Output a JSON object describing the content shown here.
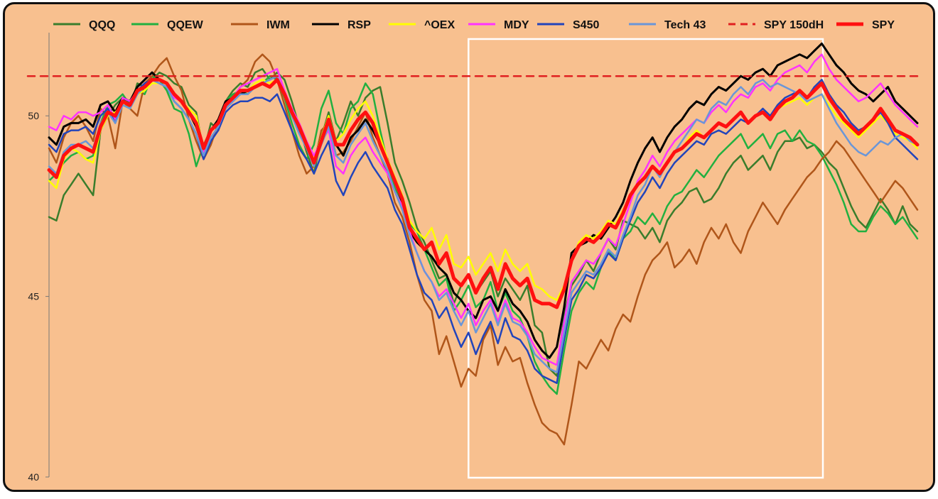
{
  "chart_data": {
    "type": "line",
    "title": "",
    "xlabel": "",
    "ylabel": "",
    "ylim": [
      40,
      52.5
    ],
    "yticks": [
      40,
      45,
      50
    ],
    "grid": false,
    "legend_position": "top",
    "highlight_box": {
      "x_start_index": 57,
      "x_end_index": 104
    },
    "series": [
      {
        "name": "QQQ",
        "color": "#3a7d2c",
        "width": 2.5,
        "values": [
          47.2,
          47.1,
          47.8,
          48.1,
          48.4,
          48.1,
          47.8,
          49.6,
          50.0,
          50.3,
          50.5,
          50.2,
          50.9,
          50.8,
          51.0,
          51.2,
          51.1,
          50.9,
          50.8,
          50.3,
          50.1,
          49.0,
          49.8,
          49.6,
          50.4,
          50.7,
          50.9,
          50.8,
          51.2,
          51.3,
          51.0,
          51.2,
          51.0,
          50.4,
          49.7,
          49.0,
          48.4,
          49.4,
          50.1,
          49.3,
          49.8,
          50.4,
          50.0,
          50.5,
          50.7,
          50.8,
          49.8,
          48.7,
          48.2,
          47.6,
          46.9,
          46.5,
          46.0,
          45.5,
          45.6,
          44.8,
          45.3,
          45.6,
          45.1,
          45.4,
          45.7,
          45.0,
          45.5,
          45.2,
          44.9,
          45.3,
          44.2,
          44.0,
          43.0,
          42.8,
          44.5,
          45.3,
          45.6,
          46.0,
          45.7,
          46.2,
          46.6,
          46.3,
          47.1,
          47.0,
          46.9,
          46.6,
          46.9,
          46.5,
          47.1,
          47.4,
          47.6,
          47.9,
          48.0,
          47.6,
          47.7,
          48.0,
          48.4,
          48.7,
          48.9,
          48.5,
          48.7,
          48.9,
          48.5,
          49.0,
          49.3,
          49.3,
          49.4,
          49.1,
          49.2,
          49.0,
          48.7,
          48.5,
          48.0,
          47.5,
          47.1,
          46.9,
          47.3,
          47.7,
          47.4,
          47.0,
          47.5,
          47.0,
          46.8
        ]
      },
      {
        "name": "QQEW",
        "color": "#22b040",
        "width": 2.5,
        "values": [
          48.2,
          48.4,
          48.7,
          48.9,
          49.0,
          48.8,
          48.9,
          49.8,
          50.3,
          50.4,
          50.6,
          50.3,
          50.7,
          50.6,
          51.1,
          51.0,
          50.7,
          50.2,
          50.1,
          49.5,
          48.6,
          49.2,
          49.6,
          49.9,
          50.4,
          50.6,
          50.7,
          50.6,
          50.8,
          50.9,
          51.1,
          51.0,
          50.5,
          49.8,
          49.2,
          48.8,
          49.2,
          50.2,
          50.7,
          49.8,
          49.5,
          50.2,
          50.4,
          50.9,
          50.6,
          49.6,
          48.7,
          48.0,
          47.6,
          47.0,
          46.8,
          46.3,
          45.8,
          45.3,
          45.5,
          44.6,
          44.9,
          45.3,
          44.7,
          44.9,
          45.4,
          44.6,
          45.1,
          44.6,
          44.4,
          43.9,
          43.2,
          42.8,
          42.5,
          42.3,
          43.5,
          44.6,
          45.1,
          45.4,
          45.2,
          45.8,
          46.3,
          46.0,
          46.6,
          46.8,
          47.2,
          47.0,
          47.3,
          47.0,
          47.5,
          47.8,
          47.9,
          48.2,
          48.5,
          48.3,
          48.6,
          48.9,
          49.1,
          49.3,
          49.5,
          49.1,
          49.3,
          49.5,
          49.1,
          49.5,
          49.6,
          49.3,
          49.6,
          49.3,
          49.2,
          48.9,
          48.5,
          48.1,
          47.6,
          47.0,
          46.8,
          46.8,
          47.2,
          47.5,
          47.3,
          47.0,
          47.2,
          46.9,
          46.6
        ]
      },
      {
        "name": "IWM",
        "color": "#b0561a",
        "width": 2.5,
        "values": [
          49.1,
          48.7,
          49.4,
          49.8,
          50.0,
          49.7,
          49.3,
          50.2,
          50.0,
          49.1,
          50.4,
          50.2,
          50.0,
          50.9,
          51.1,
          51.4,
          51.6,
          51.1,
          50.7,
          49.9,
          49.3,
          48.8,
          49.2,
          49.8,
          50.2,
          50.5,
          50.8,
          51.0,
          51.5,
          51.7,
          51.5,
          51.0,
          50.3,
          49.6,
          48.9,
          48.4,
          48.6,
          49.6,
          49.8,
          48.9,
          49.0,
          49.3,
          49.7,
          50.1,
          49.4,
          48.9,
          48.4,
          47.6,
          47.2,
          46.5,
          45.6,
          44.9,
          44.6,
          43.4,
          43.9,
          43.2,
          42.5,
          43.0,
          42.8,
          43.8,
          44.2,
          43.1,
          43.6,
          43.2,
          43.3,
          42.6,
          42.0,
          41.5,
          41.3,
          41.2,
          40.9,
          42.0,
          43.2,
          43.0,
          43.4,
          43.8,
          43.5,
          44.1,
          44.5,
          44.3,
          45.0,
          45.6,
          46.0,
          46.2,
          46.5,
          45.8,
          46.0,
          46.3,
          45.9,
          46.5,
          46.9,
          46.6,
          47.0,
          46.5,
          46.2,
          46.8,
          47.2,
          47.6,
          47.3,
          47.0,
          47.4,
          47.7,
          48.0,
          48.3,
          48.5,
          48.8,
          49.0,
          49.3,
          49.1,
          48.8,
          48.5,
          48.2,
          47.9,
          47.6,
          47.9,
          48.2,
          48.0,
          47.7,
          47.4
        ]
      },
      {
        "name": "RSP",
        "color": "#000000",
        "width": 3,
        "values": [
          49.4,
          49.2,
          49.7,
          49.8,
          49.8,
          49.9,
          49.7,
          50.3,
          50.4,
          50.1,
          50.5,
          50.4,
          50.8,
          51.0,
          51.2,
          51.0,
          50.9,
          50.6,
          50.4,
          50.1,
          49.7,
          49.1,
          49.6,
          49.9,
          50.4,
          50.5,
          50.6,
          50.7,
          50.8,
          50.9,
          50.8,
          51.0,
          50.6,
          50.1,
          49.6,
          49.2,
          48.8,
          49.4,
          49.9,
          49.2,
          48.9,
          49.4,
          49.6,
          49.9,
          49.6,
          49.2,
          48.8,
          48.2,
          47.6,
          46.8,
          46.5,
          46.3,
          46.1,
          45.8,
          45.6,
          45.1,
          44.9,
          44.6,
          44.4,
          44.9,
          45.0,
          44.6,
          45.2,
          44.8,
          44.6,
          44.3,
          43.8,
          43.5,
          43.3,
          43.6,
          44.7,
          46.2,
          46.4,
          46.5,
          46.7,
          46.6,
          46.9,
          47.2,
          47.6,
          48.2,
          48.7,
          49.1,
          49.4,
          49.0,
          49.4,
          49.7,
          49.9,
          50.2,
          50.4,
          50.3,
          50.6,
          50.8,
          50.7,
          50.9,
          51.1,
          51.0,
          51.2,
          51.3,
          51.1,
          51.4,
          51.5,
          51.6,
          51.7,
          51.6,
          51.8,
          52.0,
          51.7,
          51.4,
          51.2,
          50.9,
          50.7,
          50.6,
          50.4,
          50.6,
          50.8,
          50.4,
          50.2,
          50.0,
          49.8
        ]
      },
      {
        "name": "^OEX",
        "color": "#ffff00",
        "width": 2.5,
        "values": [
          48.2,
          48.0,
          48.8,
          49.1,
          49.0,
          48.8,
          48.7,
          49.6,
          50.0,
          50.1,
          50.3,
          50.2,
          50.6,
          50.7,
          50.9,
          50.9,
          50.8,
          50.6,
          50.4,
          50.2,
          50.0,
          49.1,
          49.6,
          49.8,
          50.3,
          50.5,
          50.7,
          50.7,
          50.9,
          51.0,
          50.9,
          51.0,
          50.7,
          50.2,
          49.8,
          49.3,
          48.8,
          49.4,
          50.0,
          49.3,
          49.5,
          49.9,
          50.2,
          50.4,
          50.0,
          49.4,
          48.8,
          48.3,
          47.8,
          47.1,
          46.8,
          46.6,
          46.9,
          46.3,
          46.7,
          45.9,
          45.8,
          46.1,
          45.6,
          45.9,
          46.2,
          45.7,
          46.3,
          45.9,
          45.7,
          45.9,
          45.3,
          45.2,
          45.0,
          44.9,
          45.3,
          46.0,
          46.5,
          46.7,
          46.6,
          46.8,
          47.1,
          47.0,
          47.4,
          47.8,
          48.1,
          48.3,
          48.6,
          48.4,
          48.7,
          49.0,
          49.1,
          49.4,
          49.6,
          49.4,
          49.6,
          49.8,
          49.7,
          49.9,
          50.1,
          49.8,
          50.0,
          50.1,
          49.9,
          50.2,
          50.3,
          50.4,
          50.5,
          50.3,
          50.5,
          50.6,
          50.3,
          50.0,
          49.8,
          49.6,
          49.4,
          49.6,
          49.8,
          50.0,
          49.8,
          49.5,
          49.4,
          49.3,
          49.1
        ]
      },
      {
        "name": "MDY",
        "color": "#ff33ff",
        "width": 2.5,
        "values": [
          49.7,
          49.6,
          50.0,
          49.9,
          50.1,
          50.1,
          50.0,
          50.1,
          50.3,
          49.9,
          50.5,
          50.4,
          50.7,
          50.8,
          51.0,
          50.9,
          50.8,
          50.5,
          50.4,
          50.1,
          49.8,
          49.0,
          49.6,
          49.8,
          50.3,
          50.5,
          50.8,
          50.9,
          51.0,
          51.1,
          51.2,
          51.3,
          50.7,
          50.2,
          49.8,
          49.3,
          48.9,
          49.3,
          49.6,
          48.6,
          48.4,
          48.9,
          49.2,
          49.4,
          49.0,
          48.7,
          48.4,
          47.9,
          47.5,
          46.8,
          46.2,
          45.7,
          45.4,
          45.0,
          45.2,
          44.8,
          44.4,
          44.8,
          44.2,
          44.6,
          44.9,
          44.3,
          44.9,
          44.4,
          44.3,
          44.0,
          43.6,
          43.3,
          43.2,
          43.1,
          44.3,
          45.4,
          45.7,
          46.0,
          45.9,
          46.2,
          46.6,
          46.4,
          47.0,
          47.6,
          48.2,
          48.5,
          48.9,
          48.6,
          49.0,
          49.3,
          49.5,
          49.7,
          49.9,
          49.8,
          50.1,
          50.3,
          50.1,
          50.4,
          50.6,
          50.5,
          50.8,
          50.9,
          50.7,
          51.0,
          51.2,
          51.3,
          51.4,
          51.2,
          51.5,
          51.7,
          51.3,
          51.0,
          50.8,
          50.6,
          50.4,
          50.5,
          50.7,
          50.9,
          50.6,
          50.3,
          50.1,
          49.9,
          49.7
        ]
      },
      {
        "name": "S450",
        "color": "#2244bb",
        "width": 2.5,
        "values": [
          49.2,
          49.0,
          49.5,
          49.6,
          49.6,
          49.7,
          49.5,
          50.0,
          50.2,
          49.8,
          50.4,
          50.3,
          50.7,
          50.9,
          51.0,
          50.9,
          50.8,
          50.4,
          50.2,
          49.9,
          49.5,
          48.8,
          49.3,
          49.6,
          50.1,
          50.3,
          50.4,
          50.4,
          50.5,
          50.5,
          50.4,
          50.6,
          50.1,
          49.6,
          49.1,
          48.8,
          48.4,
          48.9,
          49.3,
          48.2,
          47.8,
          48.3,
          48.7,
          49.0,
          48.6,
          48.3,
          48.0,
          47.4,
          47.0,
          46.3,
          45.6,
          45.1,
          44.9,
          44.4,
          44.7,
          44.1,
          43.6,
          44.0,
          43.4,
          43.9,
          44.3,
          43.7,
          44.4,
          43.9,
          43.8,
          43.5,
          43.0,
          42.8,
          42.7,
          42.6,
          43.8,
          44.9,
          45.2,
          45.6,
          45.5,
          45.8,
          46.2,
          46.0,
          46.6,
          47.1,
          47.6,
          47.9,
          48.3,
          48.0,
          48.4,
          48.7,
          48.9,
          49.1,
          49.3,
          49.2,
          49.5,
          49.6,
          49.5,
          49.7,
          49.9,
          49.8,
          50.0,
          50.2,
          50.0,
          50.3,
          50.5,
          50.6,
          50.7,
          50.5,
          50.8,
          51.0,
          50.6,
          50.3,
          50.1,
          49.8,
          49.6,
          49.7,
          49.9,
          50.1,
          49.8,
          49.4,
          49.2,
          49.0,
          48.8
        ]
      },
      {
        "name": "Tech 43",
        "color": "#6a96d8",
        "width": 2.5,
        "values": [
          48.6,
          48.4,
          49.0,
          49.2,
          49.2,
          49.3,
          49.1,
          49.8,
          50.1,
          49.8,
          50.3,
          50.2,
          50.6,
          50.8,
          51.0,
          50.9,
          50.8,
          50.4,
          50.2,
          49.9,
          49.5,
          48.9,
          49.4,
          49.7,
          50.2,
          50.4,
          50.6,
          50.6,
          50.8,
          50.9,
          51.0,
          51.1,
          50.6,
          50.0,
          49.5,
          49.1,
          48.6,
          49.2,
          49.7,
          48.9,
          48.7,
          49.2,
          49.5,
          49.8,
          49.3,
          48.9,
          48.5,
          47.9,
          47.4,
          46.7,
          46.2,
          45.7,
          45.4,
          44.9,
          45.1,
          44.6,
          44.2,
          44.6,
          44.0,
          44.4,
          44.8,
          44.2,
          44.8,
          44.3,
          44.2,
          43.9,
          43.4,
          43.2,
          43.0,
          42.9,
          44.0,
          45.1,
          45.4,
          45.7,
          45.6,
          45.9,
          46.3,
          46.1,
          46.7,
          47.2,
          47.8,
          48.1,
          48.6,
          48.3,
          48.7,
          49.0,
          49.3,
          49.6,
          49.9,
          49.8,
          50.2,
          50.4,
          50.3,
          50.6,
          50.8,
          50.6,
          50.9,
          51.0,
          50.8,
          50.9,
          50.8,
          50.7,
          50.6,
          50.4,
          50.5,
          50.6,
          50.2,
          49.8,
          49.5,
          49.2,
          49.0,
          48.9,
          49.1,
          49.3,
          49.2,
          49.4,
          49.5,
          49.3,
          49.2
        ]
      },
      {
        "name": "SPY 150dH",
        "color": "#e02020",
        "width": 2.5,
        "dashed": true,
        "values": [
          51.1,
          51.1
        ]
      },
      {
        "name": "SPY",
        "color": "#ff1010",
        "width": 5,
        "values": [
          48.5,
          48.3,
          48.9,
          49.1,
          49.2,
          49.1,
          49.0,
          49.7,
          50.1,
          50.0,
          50.4,
          50.3,
          50.7,
          50.8,
          51.0,
          51.0,
          50.9,
          50.6,
          50.4,
          50.1,
          49.8,
          49.1,
          49.6,
          49.8,
          50.3,
          50.5,
          50.7,
          50.7,
          50.8,
          50.9,
          50.8,
          51.0,
          50.6,
          50.1,
          49.7,
          49.2,
          48.7,
          49.3,
          49.9,
          49.2,
          49.2,
          49.6,
          49.9,
          50.1,
          49.8,
          49.2,
          48.7,
          48.2,
          47.7,
          46.9,
          46.6,
          46.3,
          46.5,
          45.9,
          46.2,
          45.5,
          45.3,
          45.6,
          45.1,
          45.5,
          45.8,
          45.2,
          45.9,
          45.5,
          45.3,
          45.5,
          44.9,
          44.8,
          44.8,
          44.7,
          45.2,
          46.0,
          46.4,
          46.6,
          46.5,
          46.7,
          47.0,
          46.9,
          47.3,
          47.8,
          48.1,
          48.3,
          48.6,
          48.4,
          48.7,
          49.0,
          49.1,
          49.3,
          49.5,
          49.4,
          49.6,
          49.8,
          49.7,
          49.9,
          50.1,
          49.8,
          50.0,
          50.1,
          49.9,
          50.2,
          50.4,
          50.5,
          50.7,
          50.5,
          50.7,
          50.9,
          50.5,
          50.2,
          49.9,
          49.7,
          49.5,
          49.7,
          49.9,
          50.2,
          49.9,
          49.6,
          49.5,
          49.4,
          49.2
        ]
      }
    ]
  }
}
